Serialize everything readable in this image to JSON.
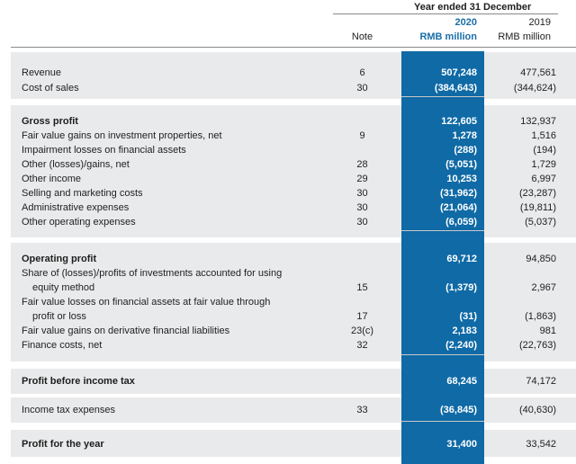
{
  "header": {
    "period": "Year ended 31 December",
    "note_label": "Note",
    "year_2020": "2020",
    "year_2019": "2019",
    "unit_2020": "RMB million",
    "unit_2019": "RMB million"
  },
  "rows": [
    {
      "label": "Revenue",
      "note": "6",
      "v2020": "507,248",
      "v2019": "477,561",
      "bold": false
    },
    {
      "label": "Cost of sales",
      "note": "30",
      "v2020": "(384,643)",
      "v2019": "(344,624)",
      "bold": false
    },
    {
      "label": "Gross profit",
      "note": "",
      "v2020": "122,605",
      "v2019": "132,937",
      "bold": true
    },
    {
      "label": "Fair value gains on investment properties, net",
      "note": "9",
      "v2020": "1,278",
      "v2019": "1,516",
      "bold": false
    },
    {
      "label": "Impairment losses on financial assets",
      "note": "",
      "v2020": "(288)",
      "v2019": "(194)",
      "bold": false
    },
    {
      "label": "Other (losses)/gains, net",
      "note": "28",
      "v2020": "(5,051)",
      "v2019": "1,729",
      "bold": false
    },
    {
      "label": "Other income",
      "note": "29",
      "v2020": "10,253",
      "v2019": "6,997",
      "bold": false
    },
    {
      "label": "Selling and marketing costs",
      "note": "30",
      "v2020": "(31,962)",
      "v2019": "(23,287)",
      "bold": false
    },
    {
      "label": "Administrative expenses",
      "note": "30",
      "v2020": "(21,064)",
      "v2019": "(19,811)",
      "bold": false
    },
    {
      "label": "Other operating expenses",
      "note": "30",
      "v2020": "(6,059)",
      "v2019": "(5,037)",
      "bold": false
    },
    {
      "label": "Operating profit",
      "note": "",
      "v2020": "69,712",
      "v2019": "94,850",
      "bold": true
    },
    {
      "label": "Share of (losses)/profits of investments accounted for using",
      "note": "",
      "v2020": "",
      "v2019": "",
      "bold": false
    },
    {
      "label": "equity method",
      "note": "15",
      "v2020": "(1,379)",
      "v2019": "2,967",
      "bold": false
    },
    {
      "label": "Fair value losses on financial assets at fair value through",
      "note": "",
      "v2020": "",
      "v2019": "",
      "bold": false
    },
    {
      "label": "profit or loss",
      "note": "17",
      "v2020": "(31)",
      "v2019": "(1,863)",
      "bold": false
    },
    {
      "label": "Fair value gains on derivative financial liabilities",
      "note": "23(c)",
      "v2020": "2,183",
      "v2019": "981",
      "bold": false
    },
    {
      "label": "Finance costs, net",
      "note": "32",
      "v2020": "(2,240)",
      "v2019": "(22,763)",
      "bold": false
    },
    {
      "label": "Profit before income tax",
      "note": "",
      "v2020": "68,245",
      "v2019": "74,172",
      "bold": true
    },
    {
      "label": "Income tax expenses",
      "note": "33",
      "v2020": "(36,845)",
      "v2019": "(40,630)",
      "bold": false
    },
    {
      "label": "Profit for the year",
      "note": "",
      "v2020": "31,400",
      "v2019": "33,542",
      "bold": true
    }
  ]
}
